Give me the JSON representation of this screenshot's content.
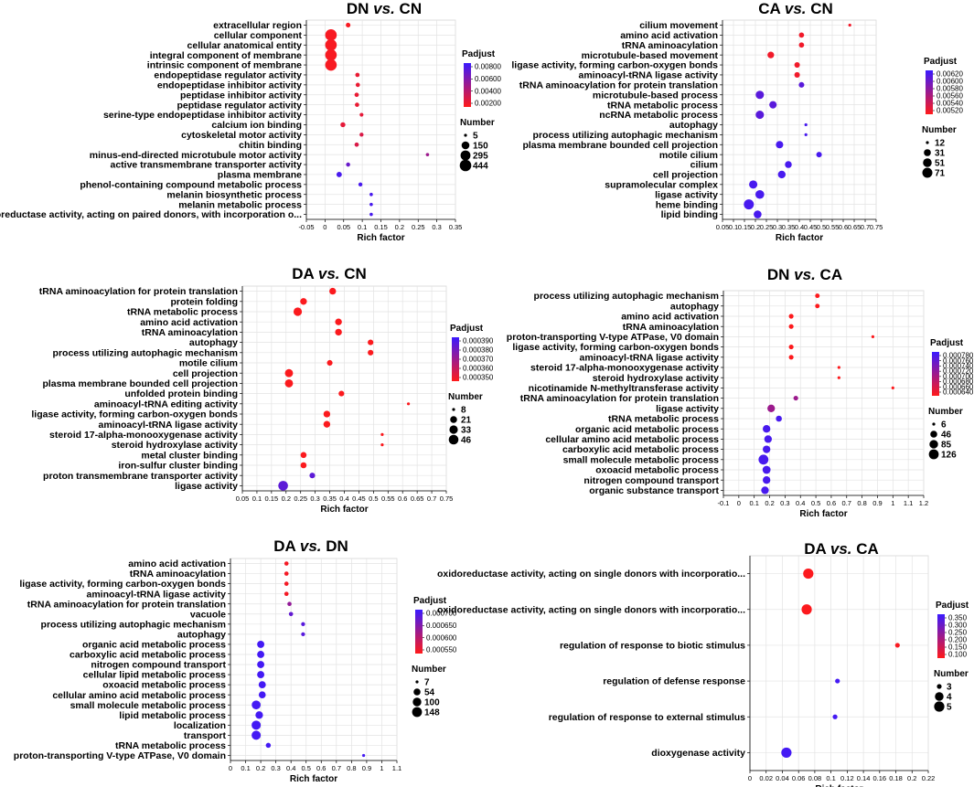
{
  "colors": {
    "low_padj": "#ff1a1a",
    "high_padj": "#3a1aff",
    "grid": "#e3e3e3"
  },
  "chart_data": [
    {
      "type": "scatter",
      "title_left": "DN",
      "title_mid": "vs.",
      "title_right": "CN",
      "xlabel": "Rich factor",
      "xlim": [
        -0.05,
        0.35
      ],
      "xticks": [
        "-0.05",
        "0",
        "0.05",
        "0.1",
        "0.15",
        "0.2",
        "0.25",
        "0.3",
        "0.35"
      ],
      "legend_title": "Padjust",
      "padjust_ticks": [
        "0.00800",
        "0.00600",
        "0.00400",
        "0.00200"
      ],
      "padjust_range": [
        0.0009,
        0.0091
      ],
      "number_title": "Number",
      "number_levels": [
        "5",
        "150",
        "295",
        "444"
      ],
      "number_range": [
        5,
        444
      ],
      "categories": [
        "extracellular region",
        "cellular component",
        "cellular anatomical entity",
        "integral component of membrane",
        "intrinsic component of membrane",
        "endopeptidase regulator activity",
        "endopeptidase inhibitor activity",
        "peptidase inhibitor activity",
        "peptidase regulator activity",
        "serine-type endopeptidase inhibitor activity",
        "calcium ion binding",
        "cytoskeletal motor activity",
        "chitin binding",
        "minus-end-directed microtubule motor activity",
        "active transmembrane transporter activity",
        "plasma membrane",
        "phenol-containing compound metabolic process",
        "melanin biosynthetic process",
        "melanin metabolic process",
        "oxidoreductase activity, acting on paired donors, with incorporation o..."
      ],
      "x": [
        0.062,
        0.016,
        0.016,
        0.016,
        0.016,
        0.087,
        0.088,
        0.085,
        0.086,
        0.098,
        0.048,
        0.098,
        0.085,
        0.275,
        0.062,
        0.038,
        0.095,
        0.124,
        0.124,
        0.124
      ],
      "number": [
        22,
        444,
        444,
        444,
        444,
        16,
        16,
        17,
        16,
        10,
        30,
        12,
        16,
        6,
        14,
        40,
        12,
        6,
        6,
        6
      ],
      "padjust": [
        0.0012,
        0.0012,
        0.0012,
        0.0012,
        0.0012,
        0.0018,
        0.0018,
        0.0018,
        0.0018,
        0.002,
        0.002,
        0.0025,
        0.0025,
        0.005,
        0.0072,
        0.0085,
        0.0085,
        0.0085,
        0.0085,
        0.0085
      ]
    },
    {
      "type": "scatter",
      "title_left": "CA",
      "title_mid": "vs.",
      "title_right": "CN",
      "xlabel": "Rich factor",
      "xlim": [
        0.05,
        0.75
      ],
      "xticks": [
        "0.05",
        "0.1",
        "0.15",
        "0.2",
        "0.25",
        "0.3",
        "0.35",
        "0.4",
        "0.45",
        "0.5",
        "0.55",
        "0.6",
        "0.65",
        "0.7",
        "0.75"
      ],
      "legend_title": "Padjust",
      "padjust_ticks": [
        "0.00620",
        "0.00600",
        "0.00580",
        "0.00560",
        "0.00540",
        "0.00520"
      ],
      "padjust_range": [
        0.00512,
        0.00628
      ],
      "number_title": "Number",
      "number_levels": [
        "12",
        "31",
        "51",
        "71"
      ],
      "number_range": [
        12,
        71
      ],
      "categories": [
        "cilium movement",
        "amino acid activation",
        "tRNA aminoacylation",
        "microtubule-based movement",
        "ligase activity, forming carbon-oxygen bonds",
        "aminoacyl-tRNA ligase activity",
        "tRNA aminoacylation for protein translation",
        "microtubule-based process",
        "tRNA metabolic process",
        "ncRNA metabolic process",
        "autophagy",
        "process utilizing autophagic mechanism",
        "plasma membrane bounded cell projection",
        "motile cilium",
        "cilium",
        "cell projection",
        "supramolecular complex",
        "ligase activity",
        "heme binding",
        "lipid binding"
      ],
      "x": [
        0.63,
        0.41,
        0.41,
        0.27,
        0.39,
        0.39,
        0.41,
        0.22,
        0.28,
        0.22,
        0.43,
        0.43,
        0.31,
        0.49,
        0.35,
        0.32,
        0.19,
        0.22,
        0.17,
        0.21
      ],
      "number": [
        12,
        18,
        18,
        28,
        20,
        20,
        20,
        45,
        35,
        45,
        12,
        12,
        35,
        20,
        30,
        38,
        45,
        52,
        71,
        40
      ],
      "padjust": [
        0.0052,
        0.0052,
        0.0052,
        0.0052,
        0.0052,
        0.0052,
        0.0061,
        0.0061,
        0.0061,
        0.0061,
        0.0062,
        0.0062,
        0.0062,
        0.0062,
        0.0062,
        0.0062,
        0.0062,
        0.0062,
        0.0062,
        0.0062
      ]
    },
    {
      "type": "scatter",
      "title_left": "DA",
      "title_mid": "vs.",
      "title_right": "CN",
      "xlabel": "Rich factor",
      "xlim": [
        0.05,
        0.75
      ],
      "xticks": [
        "0.05",
        "0.1",
        "0.15",
        "0.2",
        "0.25",
        "0.3",
        "0.35",
        "0.4",
        "0.45",
        "0.5",
        "0.55",
        "0.6",
        "0.65",
        "0.7",
        "0.75"
      ],
      "legend_title": "Padjust",
      "padjust_ticks": [
        "0.000390",
        "0.000380",
        "0.000370",
        "0.000360",
        "0.000350"
      ],
      "padjust_range": [
        0.000342,
        0.000394
      ],
      "number_title": "Number",
      "number_levels": [
        "8",
        "21",
        "33",
        "46"
      ],
      "number_range": [
        8,
        46
      ],
      "categories": [
        "tRNA aminoacylation for protein translation",
        "protein folding",
        "tRNA metabolic process",
        "amino acid activation",
        "tRNA aminoacylation",
        "autophagy",
        "process utilizing autophagic mechanism",
        "motile cilium",
        "cell projection",
        "plasma membrane bounded cell projection",
        "unfolded protein binding",
        "aminoacyl-tRNA editing activity",
        "ligase activity, forming carbon-oxygen bonds",
        "aminoacyl-tRNA ligase activity",
        "steroid 17-alpha-monooxygenase activity",
        "steroid hydroxylase activity",
        "metal cluster binding",
        "iron-sulfur cluster binding",
        "proton transmembrane transporter activity",
        "ligase activity"
      ],
      "x": [
        0.36,
        0.26,
        0.24,
        0.38,
        0.38,
        0.49,
        0.49,
        0.35,
        0.21,
        0.21,
        0.39,
        0.62,
        0.34,
        0.34,
        0.53,
        0.53,
        0.26,
        0.26,
        0.29,
        0.19
      ],
      "number": [
        20,
        20,
        33,
        20,
        20,
        14,
        14,
        14,
        30,
        30,
        14,
        8,
        20,
        20,
        8,
        8,
        16,
        16,
        14,
        46
      ],
      "padjust": [
        0.000343,
        0.000343,
        0.000343,
        0.000343,
        0.000343,
        0.000343,
        0.000343,
        0.000343,
        0.000343,
        0.000343,
        0.000343,
        0.000343,
        0.000343,
        0.000343,
        0.000343,
        0.000343,
        0.000343,
        0.000343,
        0.000385,
        0.000385
      ]
    },
    {
      "type": "scatter",
      "title_left": "DN",
      "title_mid": "vs.",
      "title_right": "CA",
      "xlabel": "Rich factor",
      "xlim": [
        -0.1,
        1.2
      ],
      "xticks": [
        "-0.1",
        "0",
        "0.1",
        "0.2",
        "0.3",
        "0.4",
        "0.5",
        "0.6",
        "0.7",
        "0.8",
        "0.9",
        "1",
        "1.1",
        "1.2"
      ],
      "legend_title": "Padjust",
      "padjust_ticks": [
        "0.000780",
        "0.000760",
        "0.000740",
        "0.000720",
        "0.000700",
        "0.000680",
        "0.000660",
        "0.000640"
      ],
      "padjust_range": [
        0.000628,
        0.000792
      ],
      "number_title": "Number",
      "number_levels": [
        "6",
        "46",
        "85",
        "126"
      ],
      "number_range": [
        6,
        126
      ],
      "categories": [
        "process utilizing autophagic mechanism",
        "autophagy",
        "amino acid activation",
        "tRNA aminoacylation",
        "proton-transporting V-type ATPase, V0 domain",
        "ligase activity, forming carbon-oxygen bonds",
        "aminoacyl-tRNA ligase activity",
        "steroid 17-alpha-monooxygenase activity",
        "steroid hydroxylase activity",
        "nicotinamide N-methyltransferase activity",
        "tRNA aminoacylation for protein translation",
        "ligase activity",
        "tRNA metabolic process",
        "organic acid metabolic process",
        "cellular amino acid metabolic process",
        "carboxylic acid metabolic process",
        "small molecule metabolic process",
        "oxoacid metabolic process",
        "nitrogen compound transport",
        "organic substance transport"
      ],
      "x": [
        0.51,
        0.51,
        0.34,
        0.34,
        0.87,
        0.34,
        0.34,
        0.65,
        0.65,
        1.0,
        0.37,
        0.21,
        0.26,
        0.18,
        0.19,
        0.18,
        0.16,
        0.18,
        0.18,
        0.17
      ],
      "number": [
        12,
        12,
        14,
        14,
        6,
        14,
        14,
        6,
        6,
        6,
        14,
        60,
        30,
        60,
        60,
        60,
        126,
        70,
        60,
        60
      ],
      "padjust": [
        0.00063,
        0.00063,
        0.00063,
        0.00063,
        0.00063,
        0.00063,
        0.00063,
        0.00063,
        0.00063,
        0.00063,
        0.00071,
        0.00071,
        0.00078,
        0.00078,
        0.00078,
        0.00078,
        0.00078,
        0.00078,
        0.00078,
        0.00078
      ]
    },
    {
      "type": "scatter",
      "title_left": "DA",
      "title_mid": "vs.",
      "title_right": "DN",
      "xlabel": "Rich factor",
      "xlim": [
        0,
        1.1
      ],
      "xticks": [
        "0",
        "0.1",
        "0.2",
        "0.3",
        "0.4",
        "0.5",
        "0.6",
        "0.7",
        "0.8",
        "0.9",
        "1",
        "1.1"
      ],
      "legend_title": "Padjust",
      "padjust_ticks": [
        "0.000700",
        "0.000650",
        "0.000600",
        "0.000550"
      ],
      "padjust_range": [
        0.00052,
        0.00072
      ],
      "number_title": "Number",
      "number_levels": [
        "7",
        "54",
        "100",
        "148"
      ],
      "number_range": [
        7,
        148
      ],
      "categories": [
        "amino acid activation",
        "tRNA aminoacylation",
        "ligase activity, forming carbon-oxygen bonds",
        "aminoacyl-tRNA ligase activity",
        "tRNA aminoacylation for protein translation",
        "vacuole",
        "process utilizing autophagic mechanism",
        "autophagy",
        "organic acid metabolic process",
        "carboxylic acid metabolic process",
        "nitrogen compound transport",
        "cellular lipid metabolic process",
        "oxoacid metabolic process",
        "cellular amino acid metabolic process",
        "small molecule metabolic process",
        "lipid metabolic process",
        "localization",
        "transport",
        "tRNA metabolic process",
        "proton-transporting V-type ATPase, V0 domain"
      ],
      "x": [
        0.37,
        0.37,
        0.37,
        0.37,
        0.39,
        0.4,
        0.48,
        0.48,
        0.2,
        0.2,
        0.2,
        0.2,
        0.21,
        0.21,
        0.17,
        0.19,
        0.17,
        0.17,
        0.25,
        0.88
      ],
      "number": [
        12,
        12,
        12,
        12,
        12,
        12,
        10,
        10,
        60,
        60,
        60,
        60,
        60,
        55,
        110,
        70,
        120,
        120,
        20,
        7
      ],
      "padjust": [
        0.00053,
        0.00053,
        0.00053,
        0.00053,
        0.00063,
        0.00068,
        0.00069,
        0.00069,
        0.00071,
        0.00071,
        0.00071,
        0.00071,
        0.00071,
        0.00071,
        0.00071,
        0.00071,
        0.00071,
        0.00071,
        0.00071,
        0.00071
      ]
    },
    {
      "type": "scatter",
      "title_left": "DA",
      "title_mid": "vs.",
      "title_right": "CA",
      "xlabel": "Rich factor",
      "xlim": [
        0,
        0.22
      ],
      "xticks": [
        "0",
        "0.02",
        "0.04",
        "0.06",
        "0.08",
        "0.1",
        "0.12",
        "0.14",
        "0.16",
        "0.18",
        "0.2",
        "0.22"
      ],
      "legend_title": "Padjust",
      "padjust_ticks": [
        "0.350",
        "0.300",
        "0.250",
        "0.200",
        "0.150",
        "0.100"
      ],
      "padjust_range": [
        0.07,
        0.375
      ],
      "number_title": "Number",
      "number_levels": [
        "3",
        "4",
        "5"
      ],
      "number_range": [
        3,
        5
      ],
      "categories": [
        "oxidoreductase activity, acting on single donors with incorporatio...",
        "oxidoreductase activity, acting on single donors with incorporatio...",
        "regulation of response to biotic stimulus",
        "regulation of defense response",
        "regulation of response to external stimulus",
        "dioxygenase activity"
      ],
      "x": [
        0.072,
        0.07,
        0.182,
        0.108,
        0.105,
        0.045
      ],
      "number": [
        5,
        5,
        3,
        3,
        3,
        5
      ],
      "padjust": [
        0.075,
        0.075,
        0.08,
        0.36,
        0.36,
        0.36
      ]
    }
  ]
}
